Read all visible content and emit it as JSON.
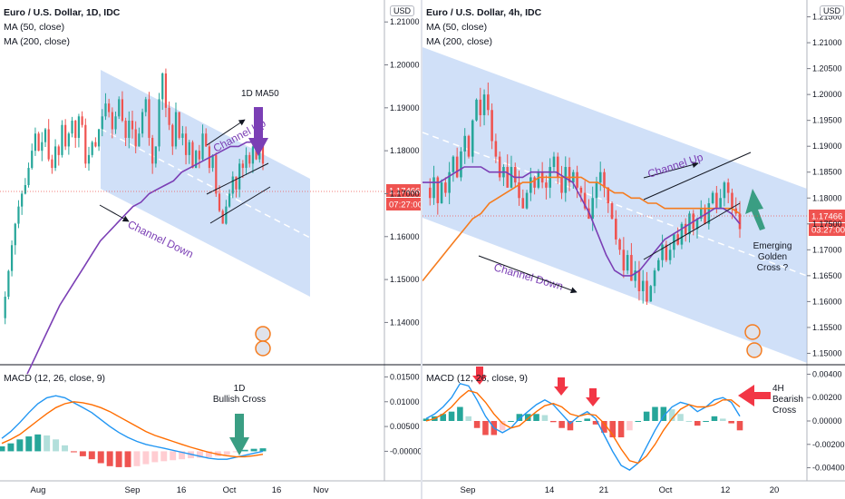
{
  "left": {
    "title": "Euro / U.S. Dollar, 1D, IDC",
    "ma50_label": "MA (50, close)",
    "ma200_label": "MA (200, close)",
    "macd_label": "MACD (12, 26, close, 9)",
    "currency": "USD",
    "price_badge": "1.17466",
    "countdown_badge": "07:27:00",
    "annotations": {
      "ma50": "1D MA50",
      "channel_up": "Channel Up",
      "channel_down": "Channel Down",
      "bullish_line1": "1D",
      "bullish_line2": "Bullish Cross"
    }
  },
  "right": {
    "title": "Euro / U.S. Dollar, 4h, IDC",
    "ma50_label": "MA (50, close)",
    "ma200_label": "MA (200, close)",
    "macd_label": "MACD (12, 26, close, 9)",
    "currency": "USD",
    "price_badge": "1.17466",
    "countdown_badge": "03:27:00",
    "annotations": {
      "channel_up": "Channel Up",
      "channel_down": "Channel Down",
      "golden_line1": "Emerging",
      "golden_line2": "Golden",
      "golden_line3": "Cross ?",
      "bearish_line1": "4H",
      "bearish_line2": "Bearish",
      "bearish_line3": "Cross"
    }
  },
  "colors": {
    "up": "#26a69a",
    "down": "#ef5350",
    "ma50": "#7b3fb5",
    "ma200": "#f57c1f",
    "macd": "#2196f3",
    "signal": "#ff6d00",
    "channel": "#aac6f3",
    "annotation": "#7b3fb5",
    "bullish_arrow": "#3a9e83",
    "bearish_arrow": "#f23645"
  },
  "chart_data": [
    {
      "type": "candlestick",
      "title": "Euro / U.S. Dollar, 1D, IDC",
      "timeframe": "1D",
      "x_ticks": [
        "Aug",
        "Sep",
        "16",
        "Oct",
        "16",
        "Nov"
      ],
      "y_ticks": [
        "1.14000",
        "1.15000",
        "1.16000",
        "1.17000",
        "1.18000",
        "1.19000",
        "1.20000",
        "1.21000"
      ],
      "ylim": [
        1.131,
        1.213
      ],
      "last_price": 1.17466,
      "series": [
        {
          "name": "MA (50, close)",
          "color": "#7b3fb5"
        }
      ],
      "close_path": [
        1.141,
        1.146,
        1.152,
        1.158,
        1.163,
        1.167,
        1.17,
        1.172,
        1.176,
        1.18,
        1.184,
        1.18,
        1.182,
        1.185,
        1.178,
        1.176,
        1.181,
        1.179,
        1.186,
        1.181,
        1.184,
        1.187,
        1.183,
        1.188,
        1.186,
        1.177,
        1.179,
        1.182,
        1.181,
        1.185,
        1.188,
        1.191,
        1.189,
        1.185,
        1.188,
        1.192,
        1.187,
        1.183,
        1.187,
        1.185,
        1.181,
        1.184,
        1.189,
        1.192,
        1.183,
        1.177,
        1.181,
        1.192,
        1.198,
        1.19,
        1.186,
        1.181,
        1.189,
        1.183,
        1.184,
        1.179,
        1.182,
        1.176,
        1.18,
        1.178,
        1.184,
        1.181,
        1.176,
        1.179,
        1.17,
        1.166,
        1.163,
        1.167,
        1.17,
        1.174,
        1.171,
        1.177,
        1.176,
        1.179,
        1.177,
        1.181,
        1.178,
        1.182,
        1.177
      ],
      "ma50_path": [
        1.128,
        1.132,
        1.136,
        1.14,
        1.144,
        1.147,
        1.15,
        1.153,
        1.156,
        1.159,
        1.161,
        1.163,
        1.165,
        1.167,
        1.168,
        1.17,
        1.171,
        1.172,
        1.173,
        1.175,
        1.176,
        1.177,
        1.178,
        1.179,
        1.18,
        1.181,
        1.181,
        1.182,
        1.182,
        1.182
      ],
      "channel_up_arrow_color": "#7b3fb5"
    },
    {
      "type": "bar",
      "title": "MACD (12, 26, close, 9)",
      "timeframe": "1D",
      "y_ticks": [
        "-0.00000",
        "0.00500",
        "0.01000",
        "0.01500"
      ],
      "ylim": [
        -0.0045,
        0.016
      ],
      "series": [
        {
          "name": "MACD",
          "color": "#2196f3",
          "values": [
            0.0026,
            0.004,
            0.0058,
            0.0078,
            0.0096,
            0.0108,
            0.0112,
            0.0108,
            0.0098,
            0.0088,
            0.0078,
            0.0064,
            0.005,
            0.0038,
            0.0028,
            0.002,
            0.0014,
            0.001,
            0.0006,
            0.0002,
            -0.0002,
            -0.0006,
            -0.001,
            -0.0014,
            -0.0016,
            -0.0016,
            -0.0012,
            -0.0008,
            -0.0004,
            0.0
          ]
        },
        {
          "name": "Signal",
          "color": "#ff6d00",
          "values": [
            0.0016,
            0.0024,
            0.0034,
            0.0048,
            0.0062,
            0.0076,
            0.0088,
            0.0096,
            0.01,
            0.0098,
            0.0094,
            0.0088,
            0.008,
            0.007,
            0.006,
            0.005,
            0.004,
            0.0032,
            0.0026,
            0.002,
            0.0014,
            0.0008,
            0.0003,
            -0.0002,
            -0.0006,
            -0.0009,
            -0.0011,
            -0.0011,
            -0.0009,
            -0.0006
          ]
        },
        {
          "name": "Histogram",
          "values": [
            0.001,
            0.0016,
            0.0024,
            0.003,
            0.0034,
            0.0032,
            0.0024,
            0.0012,
            -0.0002,
            -0.001,
            -0.0016,
            -0.0024,
            -0.003,
            -0.0032,
            -0.0032,
            -0.003,
            -0.0026,
            -0.0022,
            -0.002,
            -0.0018,
            -0.0016,
            -0.0014,
            -0.0013,
            -0.0012,
            -0.001,
            -0.0007,
            -0.0001,
            0.0003,
            0.0005,
            0.0006
          ]
        }
      ]
    },
    {
      "type": "candlestick",
      "title": "Euro / U.S. Dollar, 4h, IDC",
      "timeframe": "4h",
      "x_ticks": [
        "Sep",
        "14",
        "21",
        "Oct",
        "12",
        "20"
      ],
      "y_ticks": [
        "1.15000",
        "1.15500",
        "1.16000",
        "1.16500",
        "1.17000",
        "1.17500",
        "1.18000",
        "1.18500",
        "1.19000",
        "1.19500",
        "1.20000",
        "1.20500",
        "1.21000",
        "1.21500"
      ],
      "ylim": [
        1.1485,
        1.2165
      ],
      "last_price": 1.17466,
      "series": [
        {
          "name": "MA (50, close)",
          "color": "#7b3fb5"
        },
        {
          "name": "MA (200, close)",
          "color": "#f57c1f"
        }
      ],
      "close_path": [
        1.182,
        1.18,
        1.184,
        1.179,
        1.183,
        1.181,
        1.185,
        1.188,
        1.184,
        1.189,
        1.192,
        1.188,
        1.195,
        1.199,
        1.196,
        1.2,
        1.197,
        1.191,
        1.188,
        1.184,
        1.186,
        1.182,
        1.186,
        1.183,
        1.18,
        1.178,
        1.181,
        1.184,
        1.182,
        1.185,
        1.183,
        1.182,
        1.186,
        1.188,
        1.184,
        1.181,
        1.186,
        1.183,
        1.185,
        1.182,
        1.181,
        1.178,
        1.176,
        1.18,
        1.183,
        1.185,
        1.182,
        1.179,
        1.176,
        1.172,
        1.17,
        1.166,
        1.169,
        1.164,
        1.166,
        1.162,
        1.164,
        1.16,
        1.163,
        1.166,
        1.168,
        1.171,
        1.168,
        1.17,
        1.173,
        1.171,
        1.175,
        1.173,
        1.177,
        1.174,
        1.176,
        1.178,
        1.175,
        1.179,
        1.181,
        1.178,
        1.18,
        1.183,
        1.181,
        1.178,
        1.177,
        1.174
      ],
      "ma50_path": [
        1.183,
        1.183,
        1.183,
        1.184,
        1.185,
        1.186,
        1.186,
        1.186,
        1.185,
        1.185,
        1.185,
        1.184,
        1.184,
        1.185,
        1.185,
        1.185,
        1.185,
        1.184,
        1.183,
        1.18,
        1.177,
        1.173,
        1.169,
        1.166,
        1.165,
        1.165,
        1.166,
        1.168,
        1.17,
        1.172,
        1.173,
        1.174,
        1.175,
        1.176,
        1.177,
        1.178,
        1.178,
        1.177,
        1.175
      ],
      "ma200_path": [
        1.164,
        1.166,
        1.168,
        1.17,
        1.172,
        1.174,
        1.176,
        1.177,
        1.179,
        1.18,
        1.181,
        1.182,
        1.183,
        1.183,
        1.184,
        1.184,
        1.184,
        1.184,
        1.184,
        1.184,
        1.183,
        1.183,
        1.182,
        1.181,
        1.181,
        1.18,
        1.18,
        1.179,
        1.179,
        1.178,
        1.178,
        1.178,
        1.178,
        1.178,
        1.178,
        1.178,
        1.178,
        1.178,
        1.177
      ]
    },
    {
      "type": "bar",
      "title": "MACD (12, 26, close, 9)",
      "timeframe": "4h",
      "y_ticks": [
        "-0.00400",
        "-0.00200",
        "0.00000",
        "0.00200",
        "0.00400"
      ],
      "ylim": [
        -0.0045,
        0.0045
      ],
      "series": [
        {
          "name": "MACD",
          "color": "#2196f3",
          "values": [
            0.0002,
            0.0006,
            0.0012,
            0.002,
            0.0032,
            0.003,
            0.0018,
            0.0004,
            -0.0006,
            -0.001,
            -0.0006,
            0.0002,
            0.0008,
            0.0014,
            0.0018,
            0.0014,
            0.0006,
            -0.0002,
            0.0004,
            0.0008,
            0.0002,
            -0.0012,
            -0.0026,
            -0.0038,
            -0.0042,
            -0.0036,
            -0.0022,
            -0.0008,
            0.0004,
            0.0012,
            0.0016,
            0.0014,
            0.0008,
            0.0012,
            0.0018,
            0.002,
            0.0016,
            0.0004
          ]
        },
        {
          "name": "Signal",
          "color": "#ff6d00",
          "values": [
            0.0,
            0.0002,
            0.0006,
            0.0012,
            0.002,
            0.0026,
            0.0024,
            0.0016,
            0.0006,
            -0.0002,
            -0.0006,
            -0.0004,
            0.0002,
            0.0008,
            0.0013,
            0.0015,
            0.0012,
            0.0006,
            0.0004,
            0.0006,
            0.0005,
            -0.0002,
            -0.0012,
            -0.0024,
            -0.0034,
            -0.0036,
            -0.003,
            -0.002,
            -0.0008,
            0.0002,
            0.001,
            0.0014,
            0.0012,
            0.0012,
            0.0014,
            0.0018,
            0.0018,
            0.0012
          ]
        },
        {
          "name": "Histogram",
          "values": [
            0.0002,
            0.0004,
            0.0006,
            0.0008,
            0.0012,
            0.0004,
            -0.0006,
            -0.0012,
            -0.0012,
            -0.0008,
            0.0,
            0.0006,
            0.0006,
            0.0006,
            0.0005,
            -0.0001,
            -0.0006,
            -0.0008,
            0.0,
            0.0002,
            -0.0003,
            -0.001,
            -0.0014,
            -0.0014,
            -0.0008,
            0.0,
            0.0008,
            0.0012,
            0.0012,
            0.001,
            0.0006,
            0.0,
            -0.0004,
            0.0,
            0.0004,
            0.0002,
            -0.0002,
            -0.0008
          ]
        }
      ]
    }
  ]
}
